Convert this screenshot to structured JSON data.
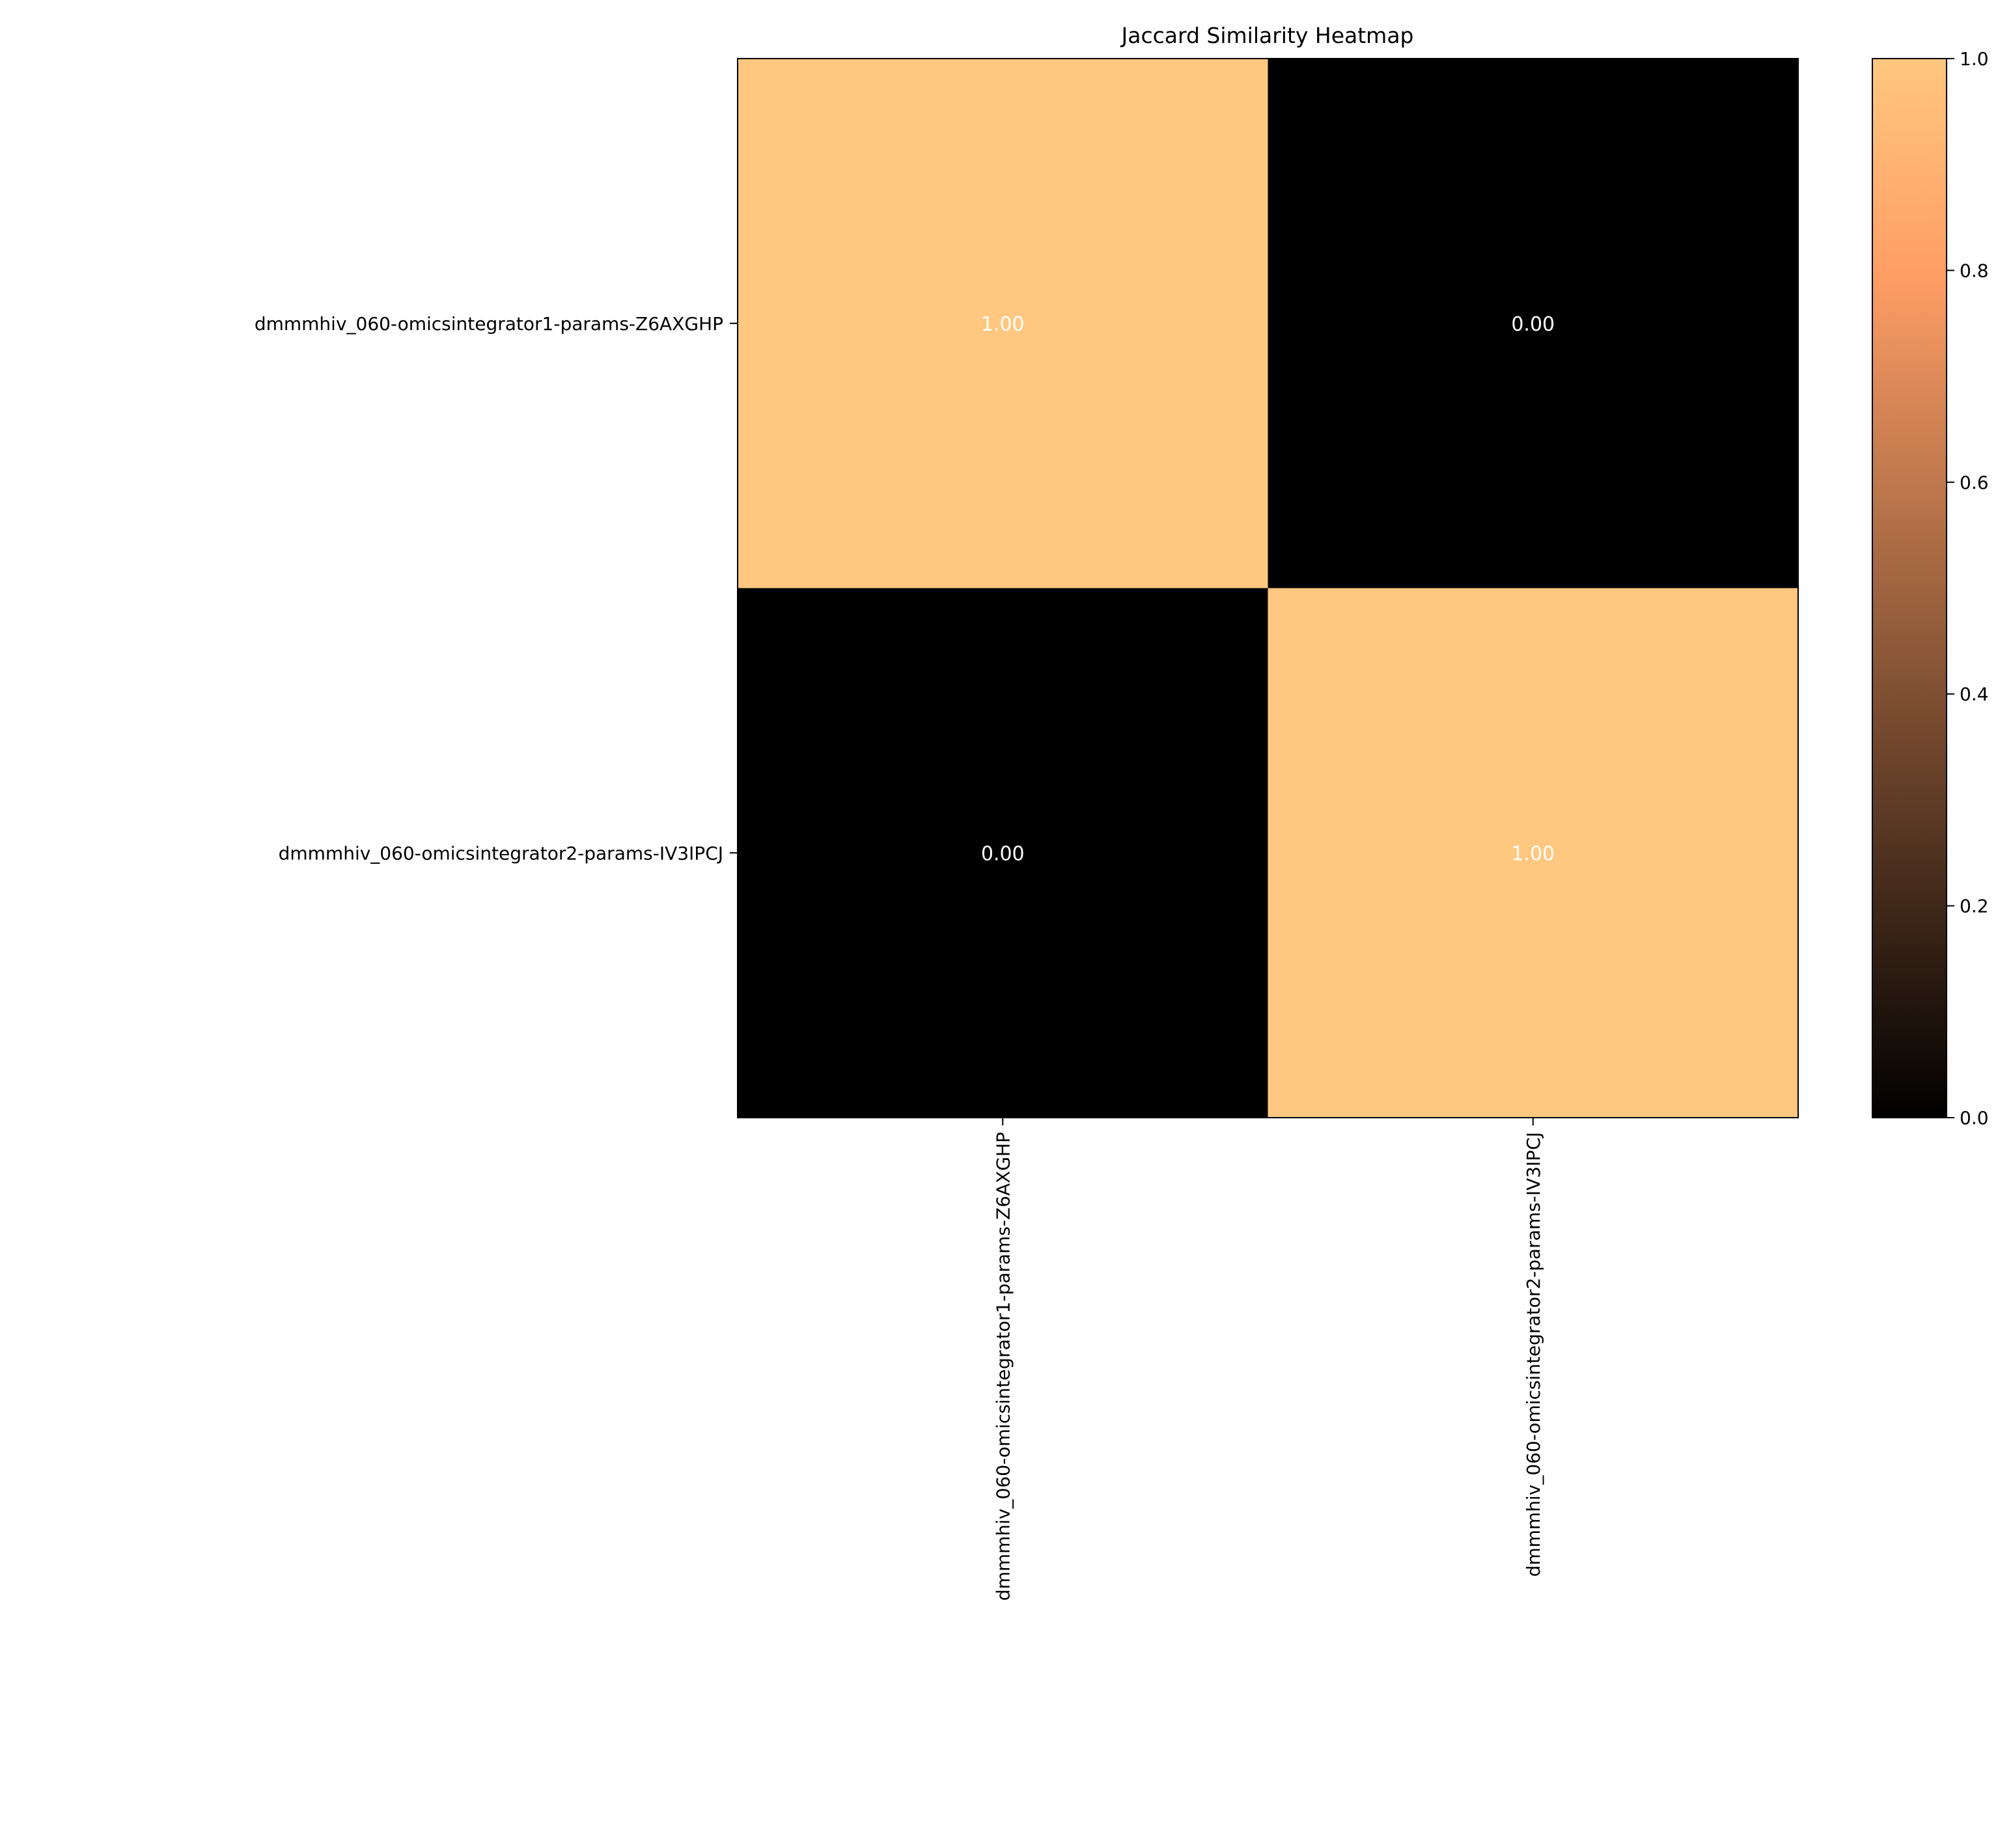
{
  "chart_data": {
    "type": "heatmap",
    "title": "Jaccard Similarity Heatmap",
    "xlabel": "",
    "ylabel": "",
    "row_labels": [
      "dmmmhiv_060-omicsintegrator1-params-Z6AXGHP",
      "dmmmhiv_060-omicsintegrator2-params-IV3IPCJ"
    ],
    "col_labels": [
      "dmmmhiv_060-omicsintegrator1-params-Z6AXGHP",
      "dmmmhiv_060-omicsintegrator2-params-IV3IPCJ"
    ],
    "values": [
      [
        1.0,
        0.0
      ],
      [
        0.0,
        1.0
      ]
    ],
    "cell_labels": [
      [
        "1.00",
        "0.00"
      ],
      [
        "0.00",
        "1.00"
      ]
    ],
    "colormap": "copper",
    "vmin": 0.0,
    "vmax": 1.0,
    "colorbar_ticks": [
      0.0,
      0.2,
      0.4,
      0.6,
      0.8,
      1.0
    ],
    "colorbar_tick_labels": [
      "0.0",
      "0.2",
      "0.4",
      "0.6",
      "0.8",
      "1.0"
    ],
    "annotation_color": "#ffffff"
  }
}
